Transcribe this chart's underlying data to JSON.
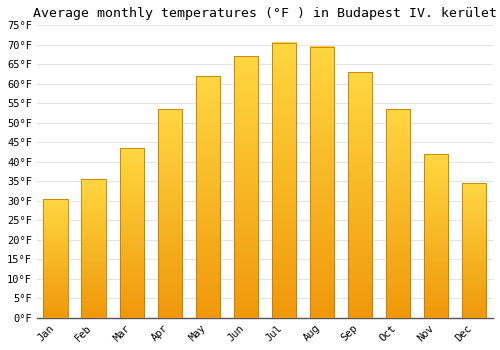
{
  "title": "Average monthly temperatures (°F ) in Budapest IV. kerület",
  "months": [
    "Jan",
    "Feb",
    "Mar",
    "Apr",
    "May",
    "Jun",
    "Jul",
    "Aug",
    "Sep",
    "Oct",
    "Nov",
    "Dec"
  ],
  "values": [
    30.5,
    35.5,
    43.5,
    53.5,
    62.0,
    67.0,
    70.5,
    69.5,
    63.0,
    53.5,
    42.0,
    34.5
  ],
  "bar_color_bottom": "#F0980A",
  "bar_color_top": "#FFD740",
  "bar_edge_color": "#C87800",
  "background_color": "#ffffff",
  "grid_color": "#d8d8d8",
  "ylim": [
    0,
    75
  ],
  "yticks": [
    0,
    5,
    10,
    15,
    20,
    25,
    30,
    35,
    40,
    45,
    50,
    55,
    60,
    65,
    70,
    75
  ],
  "title_fontsize": 9.5,
  "tick_fontsize": 7.5,
  "font_family": "monospace",
  "bar_width": 0.65
}
